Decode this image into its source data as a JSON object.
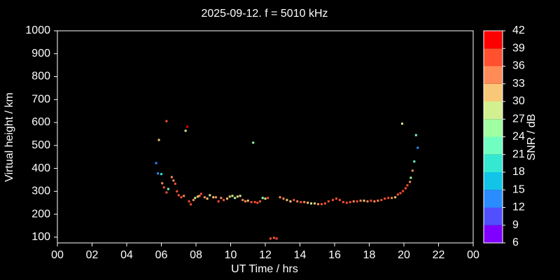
{
  "chart_data": {
    "type": "scatter",
    "title": "2025-09-12. f = 5010 kHz",
    "xlabel": "UT Time / hrs",
    "ylabel": "Virtual height / km",
    "colorbar_label": "SNR / dB",
    "xlim": [
      0,
      24
    ],
    "xticks": [
      {
        "value": 0,
        "label": "00"
      },
      {
        "value": 2,
        "label": "02"
      },
      {
        "value": 4,
        "label": "04"
      },
      {
        "value": 6,
        "label": "06"
      },
      {
        "value": 8,
        "label": "08"
      },
      10,
      12,
      14,
      16,
      18,
      20,
      22,
      {
        "value": 24,
        "label": "00"
      }
    ],
    "ylim": [
      75,
      1000
    ],
    "yticks": [
      100,
      200,
      300,
      400,
      500,
      600,
      700,
      800,
      900,
      1000
    ],
    "clim": [
      6,
      42
    ],
    "cticks": [
      6,
      9,
      12,
      15,
      18,
      21,
      24,
      27,
      30,
      33,
      36,
      39,
      42
    ],
    "colors": [
      "#8000ff",
      "#5050ff",
      "#2a8cff",
      "#12c4e8",
      "#34e8d2",
      "#70ffc0",
      "#a0ffa0",
      "#d2f090",
      "#f8c878",
      "#ff8c58",
      "#ff5030",
      "#ff0000"
    ],
    "x": [
      5.7,
      5.86,
      5.8,
      6.0,
      6.05,
      6.15,
      6.3,
      6.3,
      6.4,
      6.6,
      6.7,
      6.8,
      6.9,
      7.0,
      7.15,
      7.3,
      7.4,
      7.5,
      7.6,
      7.7,
      7.85,
      7.95,
      8.1,
      8.2,
      8.3,
      8.5,
      8.65,
      8.8,
      9.0,
      9.15,
      9.3,
      9.45,
      9.6,
      9.8,
      9.95,
      10.1,
      10.25,
      10.4,
      10.55,
      10.7,
      10.85,
      11.0,
      11.2,
      11.3,
      11.4,
      11.55,
      11.7,
      11.85,
      12.0,
      12.15,
      12.3,
      12.5,
      12.65,
      12.85,
      13.05,
      13.25,
      13.45,
      13.65,
      13.85,
      14.05,
      14.25,
      14.45,
      14.65,
      14.85,
      15.05,
      15.25,
      15.45,
      15.65,
      15.9,
      16.1,
      16.3,
      16.5,
      16.7,
      16.9,
      17.1,
      17.3,
      17.5,
      17.7,
      17.9,
      18.1,
      18.3,
      18.5,
      18.7,
      18.9,
      19.1,
      19.3,
      19.5,
      19.65,
      19.8,
      19.9,
      19.95,
      20.1,
      20.2,
      20.35,
      20.4,
      20.5,
      20.6,
      20.7,
      20.8
    ],
    "y": [
      423,
      524,
      378,
      375,
      335,
      317,
      606,
      295,
      310,
      362,
      347,
      333,
      300,
      283,
      274,
      280,
      564,
      582,
      256,
      243,
      262,
      271,
      277,
      280,
      289,
      274,
      268,
      283,
      274,
      274,
      256,
      271,
      262,
      268,
      277,
      280,
      271,
      277,
      280,
      262,
      256,
      259,
      253,
      512,
      253,
      250,
      256,
      271,
      268,
      271,
      94,
      97,
      94,
      274,
      268,
      262,
      256,
      262,
      256,
      253,
      253,
      250,
      247,
      247,
      244,
      244,
      247,
      256,
      262,
      268,
      262,
      253,
      250,
      253,
      256,
      256,
      259,
      259,
      256,
      259,
      256,
      259,
      262,
      268,
      271,
      271,
      274,
      286,
      292,
      595,
      301,
      313,
      326,
      341,
      359,
      390,
      430,
      545,
      490
    ],
    "snr": [
      12,
      30,
      12,
      20,
      33,
      38,
      36,
      37,
      21,
      33,
      34,
      36,
      36,
      36,
      36,
      33,
      27,
      40,
      36,
      38,
      33,
      27,
      30,
      33,
      36,
      33,
      30,
      27,
      30,
      33,
      36,
      33,
      36,
      30,
      30,
      27,
      24,
      30,
      27,
      33,
      33,
      30,
      36,
      24,
      36,
      36,
      36,
      24,
      27,
      36,
      38,
      38,
      36,
      33,
      33,
      30,
      30,
      36,
      33,
      36,
      33,
      30,
      27,
      30,
      33,
      36,
      36,
      36,
      36,
      36,
      36,
      36,
      36,
      36,
      33,
      36,
      33,
      30,
      33,
      36,
      33,
      33,
      36,
      36,
      36,
      33,
      30,
      36,
      36,
      27,
      36,
      36,
      36,
      33,
      24,
      33,
      21,
      21,
      12
    ]
  }
}
